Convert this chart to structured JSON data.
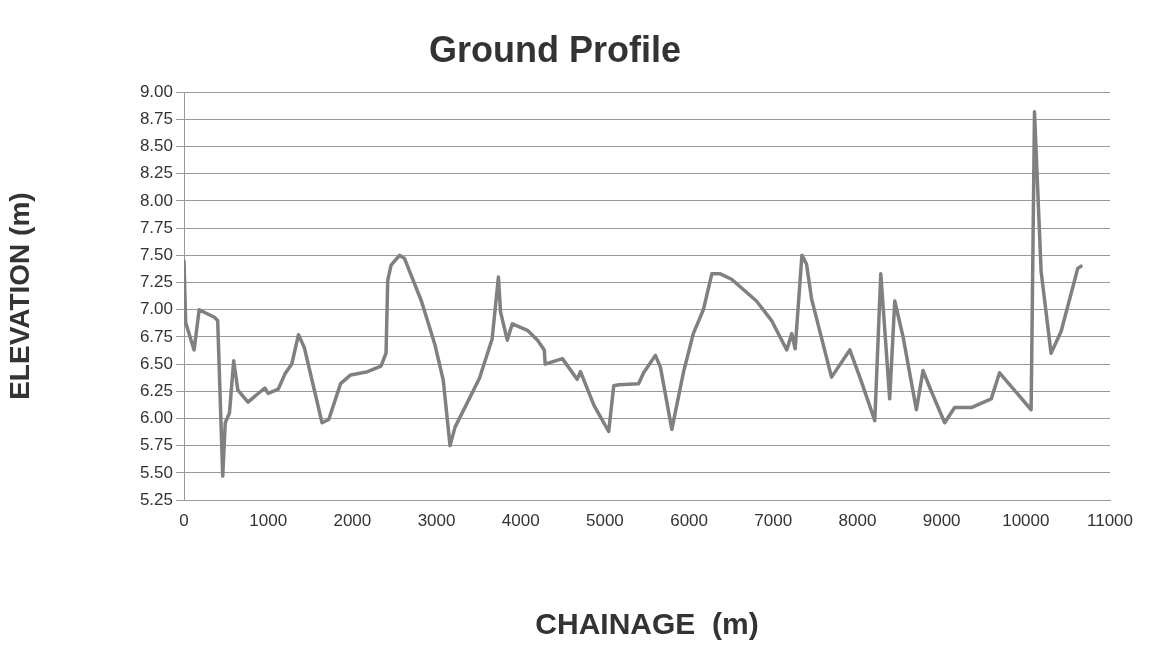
{
  "chart_data": {
    "type": "line",
    "title": "Ground Profile",
    "xlabel": "CHAINAGE  (m)",
    "ylabel": "ELEVATION (m)",
    "x": [
      0,
      20,
      120,
      180,
      360,
      400,
      460,
      490,
      540,
      590,
      640,
      760,
      960,
      1000,
      1120,
      1200,
      1280,
      1360,
      1430,
      1640,
      1720,
      1860,
      1980,
      2180,
      2340,
      2400,
      2420,
      2460,
      2560,
      2620,
      2820,
      2980,
      3080,
      3160,
      3220,
      3510,
      3660,
      3735,
      3760,
      3840,
      3900,
      4080,
      4200,
      4280,
      4290,
      4495,
      4670,
      4710,
      4870,
      5045,
      5105,
      5165,
      5400,
      5460,
      5600,
      5660,
      5795,
      5935,
      6050,
      6170,
      6270,
      6370,
      6505,
      6800,
      6980,
      7160,
      7220,
      7260,
      7340,
      7395,
      7455,
      7692,
      7909,
      8028,
      8206,
      8277,
      8383,
      8443,
      8542,
      8700,
      8779,
      8877,
      9036,
      9154,
      9352,
      9589,
      9688,
      10063,
      10103,
      10182,
      10300,
      10419,
      10617,
      10656
    ],
    "series": [
      {
        "color": "#808080",
        "values": [
          7.45,
          6.88,
          6.63,
          7.0,
          6.93,
          6.9,
          5.47,
          5.96,
          6.05,
          6.53,
          6.26,
          6.15,
          6.28,
          6.23,
          6.27,
          6.41,
          6.5,
          6.77,
          6.65,
          5.96,
          5.99,
          6.32,
          6.4,
          6.43,
          6.48,
          6.6,
          7.27,
          7.41,
          7.5,
          7.47,
          7.08,
          6.68,
          6.35,
          5.75,
          5.92,
          6.37,
          6.73,
          7.3,
          6.98,
          6.72,
          6.87,
          6.81,
          6.72,
          6.63,
          6.5,
          6.55,
          6.36,
          6.43,
          6.12,
          5.88,
          6.3,
          6.31,
          6.32,
          6.42,
          6.58,
          6.47,
          5.9,
          6.43,
          6.78,
          7.0,
          7.33,
          7.33,
          7.28,
          7.08,
          6.9,
          6.63,
          6.78,
          6.64,
          7.5,
          7.42,
          7.1,
          6.38,
          6.63,
          6.38,
          5.98,
          7.33,
          6.18,
          7.08,
          6.75,
          6.08,
          6.44,
          6.25,
          5.96,
          6.1,
          6.1,
          6.18,
          6.42,
          6.08,
          8.82,
          7.35,
          6.6,
          6.8,
          7.38,
          7.4
        ]
      }
    ],
    "xlim": [
      0,
      11000
    ],
    "xticks": [
      0,
      1000,
      2000,
      3000,
      4000,
      5000,
      6000,
      7000,
      8000,
      9000,
      10000,
      11000
    ],
    "ylim": [
      5.25,
      9
    ],
    "yticks": [
      5.25,
      {
        "value": 5.5,
        "label": "5.50"
      },
      5.75,
      {
        "value": 6,
        "label": "6.00"
      },
      6.25,
      {
        "value": 6.5,
        "label": "6.50"
      },
      6.75,
      {
        "value": 7,
        "label": "7.00"
      },
      7.25,
      {
        "value": 7.5,
        "label": "7.50"
      },
      7.75,
      {
        "value": 8,
        "label": "8.00"
      },
      8.25,
      {
        "value": 8.5,
        "label": "8.50"
      },
      8.75,
      {
        "value": 9,
        "label": "9.00"
      }
    ],
    "grid": "y",
    "legend": false,
    "marker": "none",
    "line_style": "solid"
  }
}
